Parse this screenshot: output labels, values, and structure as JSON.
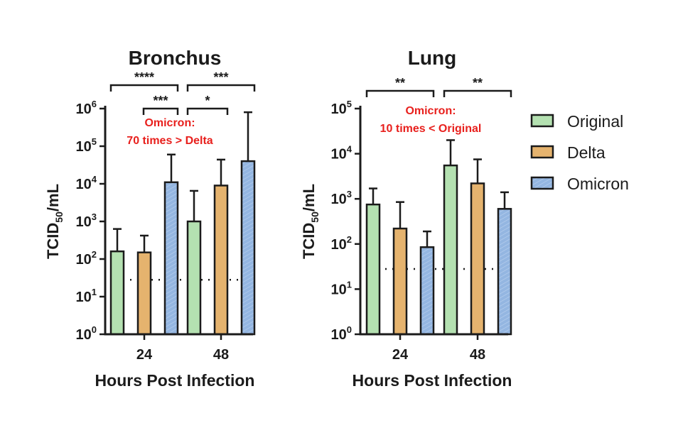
{
  "chart_data": [
    {
      "type": "bar",
      "title": "Bronchus",
      "xlabel": "Hours Post Infection",
      "ylabel": {
        "base": "TCID",
        "sub": "50",
        "rest": "/mL"
      },
      "y_scale": "log10",
      "ylim": [
        1,
        1000000
      ],
      "y_ticks": [
        {
          "base": "10",
          "exp": "0"
        },
        {
          "base": "10",
          "exp": "1"
        },
        {
          "base": "10",
          "exp": "2"
        },
        {
          "base": "10",
          "exp": "3"
        },
        {
          "base": "10",
          "exp": "4"
        },
        {
          "base": "10",
          "exp": "5"
        },
        {
          "base": "10",
          "exp": "6"
        }
      ],
      "categories": [
        "24",
        "48"
      ],
      "series": [
        {
          "name": "Original",
          "values": [
            160,
            1000
          ],
          "error_upper": [
            630,
            6500
          ]
        },
        {
          "name": "Delta",
          "values": [
            150,
            9000
          ],
          "error_upper": [
            420,
            44000
          ]
        },
        {
          "name": "Omicron",
          "values": [
            11000,
            40000
          ],
          "error_upper": [
            60000,
            800000
          ]
        }
      ],
      "detection_limit": 28,
      "significance": [
        {
          "category": 0,
          "from_series": 0,
          "to_series": 2,
          "label": "****",
          "level": 1
        },
        {
          "category": 0,
          "from_series": 1,
          "to_series": 2,
          "label": "***",
          "level": 0
        },
        {
          "category": 1,
          "from_series": 0,
          "to_series": 2,
          "label": "***",
          "level": 1
        },
        {
          "category": 1,
          "from_series": 0,
          "to_series": 1,
          "label": "*",
          "level": 0
        }
      ],
      "annotation": [
        "Omicron:",
        "70 times > Delta"
      ]
    },
    {
      "type": "bar",
      "title": "Lung",
      "xlabel": "Hours Post Infection",
      "ylabel": {
        "base": "TCID",
        "sub": "50",
        "rest": "/mL"
      },
      "y_scale": "log10",
      "ylim": [
        1,
        100000
      ],
      "y_ticks": [
        {
          "base": "10",
          "exp": "0"
        },
        {
          "base": "10",
          "exp": "1"
        },
        {
          "base": "10",
          "exp": "2"
        },
        {
          "base": "10",
          "exp": "3"
        },
        {
          "base": "10",
          "exp": "4"
        },
        {
          "base": "10",
          "exp": "5"
        }
      ],
      "categories": [
        "24",
        "48"
      ],
      "series": [
        {
          "name": "Original",
          "values": [
            750,
            5500
          ],
          "error_upper": [
            1700,
            20000
          ]
        },
        {
          "name": "Delta",
          "values": [
            220,
            2200
          ],
          "error_upper": [
            850,
            7500
          ]
        },
        {
          "name": "Omicron",
          "values": [
            85,
            600
          ],
          "error_upper": [
            190,
            1400
          ]
        }
      ],
      "detection_limit": 28,
      "significance": [
        {
          "category": 0,
          "from_series": 0,
          "to_series": 2,
          "label": "**",
          "level": 0
        },
        {
          "category": 1,
          "from_series": 0,
          "to_series": 2,
          "label": "**",
          "level": 0
        }
      ],
      "annotation": [
        "Omicron:",
        "10 times < Original"
      ]
    }
  ],
  "legend": {
    "placement": "right",
    "items": [
      {
        "name": "Original",
        "color": "#b4e1b1"
      },
      {
        "name": "Delta",
        "color": "#e5b36e"
      },
      {
        "name": "Omicron",
        "color": "#94b6e1"
      }
    ]
  },
  "colors": {
    "Original": "#b4e1b1",
    "Delta": "#e5b36e",
    "Omicron": "#94b6e1",
    "annotation": "#e8201d",
    "stroke": "#1b1b1b"
  }
}
